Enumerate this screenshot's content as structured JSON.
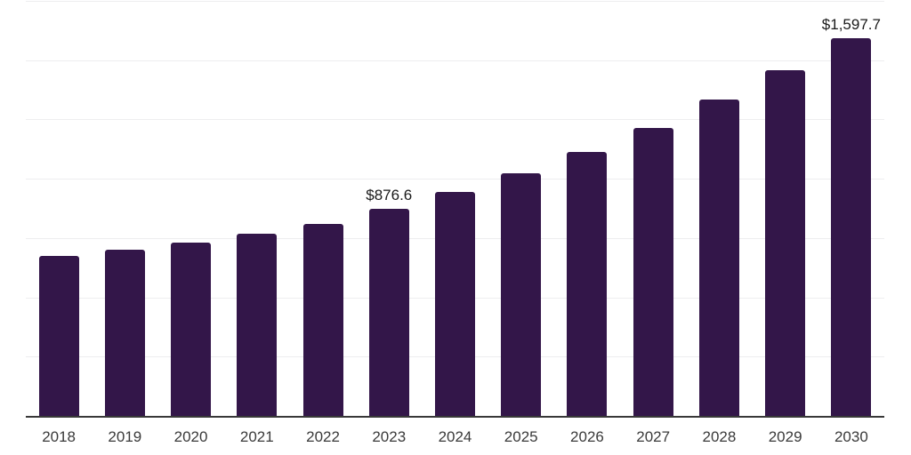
{
  "chart_data": {
    "type": "bar",
    "title": "",
    "xlabel": "",
    "ylabel": "",
    "categories": [
      "2018",
      "2019",
      "2020",
      "2021",
      "2022",
      "2023",
      "2024",
      "2025",
      "2026",
      "2027",
      "2028",
      "2029",
      "2030"
    ],
    "values": [
      679,
      705,
      735,
      772,
      815,
      876.6,
      948,
      1025,
      1115,
      1218,
      1336,
      1463,
      1597.7
    ],
    "data_labels": {
      "2023": "$876.6",
      "2030": "$1,597.7"
    },
    "ylim": [
      0,
      1750
    ],
    "gridline_step": 250,
    "grid": true,
    "legend": false,
    "bar_color": "#331649",
    "gridline_color": "#eeeeef",
    "axis_color": "#383838",
    "tick_label_color": "#3a3a3a",
    "data_label_color": "#1a1a1a"
  }
}
